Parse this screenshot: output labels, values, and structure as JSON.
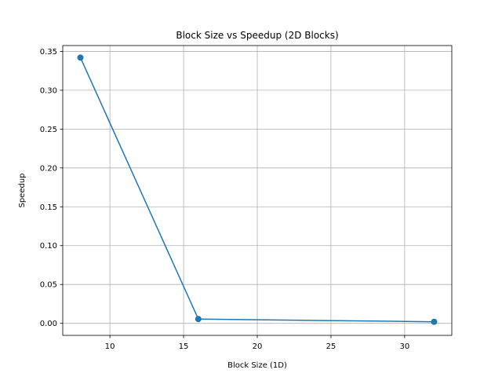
{
  "chart_data": {
    "type": "line",
    "title": "Block Size vs Speedup (2D Blocks)",
    "xlabel": "Block Size (1D)",
    "ylabel": "Speedup",
    "xlim": [
      6.8,
      33.2
    ],
    "ylim": [
      -0.0155,
      0.3575
    ],
    "xticks": [
      10,
      15,
      20,
      25,
      30
    ],
    "xtick_labels": [
      "10",
      "15",
      "20",
      "25",
      "30"
    ],
    "yticks": [
      0.0,
      0.05,
      0.1,
      0.15,
      0.2,
      0.25,
      0.3,
      0.35
    ],
    "ytick_labels": [
      "0.00",
      "0.05",
      "0.10",
      "0.15",
      "0.20",
      "0.25",
      "0.30",
      "0.35"
    ],
    "grid": true,
    "series": [
      {
        "x": [
          8,
          16,
          32
        ],
        "y": [
          0.342,
          0.0055,
          0.002
        ],
        "color": "#1f77b4",
        "marker": "circle"
      }
    ]
  }
}
